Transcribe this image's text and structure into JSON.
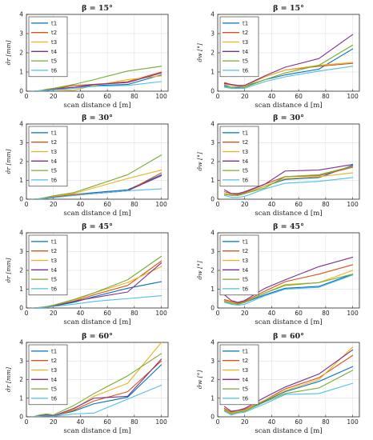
{
  "colors": {
    "t1": "#0072BD",
    "t2": "#D95319",
    "t3": "#EDB120",
    "t4": "#7E2F8E",
    "t5": "#77AC30",
    "t6": "#4DBEEE",
    "grid": "#e4e4e4",
    "axis": "#262626"
  },
  "chart_data": [
    {
      "type": "line",
      "title": "β = 15°",
      "xlabel": "scan distance d [m]",
      "ylabel": "σ̂r [mm]",
      "xlim": [
        0,
        105
      ],
      "ylim": [
        0,
        4
      ],
      "xticks": [
        "0",
        "20",
        "40",
        "60",
        "80",
        "100"
      ],
      "yticks": [
        "0",
        "1",
        "2",
        "3",
        "4"
      ],
      "grid": true,
      "legend": "top-left",
      "x": [
        5,
        10,
        15,
        20,
        35,
        50,
        75,
        100
      ],
      "series": [
        {
          "name": "t1",
          "values": [
            0,
            0.02,
            0.05,
            0.1,
            0.2,
            0.3,
            0.35,
            0.85
          ]
        },
        {
          "name": "t2",
          "values": [
            0,
            0.03,
            0.06,
            0.1,
            0.3,
            0.35,
            0.5,
            1.0
          ]
        },
        {
          "name": "t3",
          "values": [
            0,
            0.02,
            0.05,
            0.08,
            0.05,
            0.3,
            0.6,
            0.8
          ]
        },
        {
          "name": "t4",
          "values": [
            0,
            0.02,
            0.05,
            0.1,
            0.2,
            0.35,
            0.45,
            0.95
          ]
        },
        {
          "name": "t5",
          "values": [
            0,
            0.03,
            0.1,
            0.15,
            0.35,
            0.6,
            1.05,
            1.3
          ]
        },
        {
          "name": "t6",
          "values": [
            0,
            0.02,
            0.04,
            0.07,
            0.15,
            0.25,
            0.3,
            0.5
          ]
        }
      ]
    },
    {
      "type": "line",
      "title": "β = 15°",
      "xlabel": "scan distance d [m]",
      "ylabel": "σ̂w [°]",
      "xlim": [
        0,
        105
      ],
      "ylim": [
        0,
        4
      ],
      "xticks": [
        "0",
        "20",
        "40",
        "60",
        "80",
        "100"
      ],
      "yticks": [
        "0",
        "1",
        "2",
        "3",
        "4"
      ],
      "grid": true,
      "legend": "top-left",
      "x": [
        5,
        10,
        15,
        20,
        35,
        50,
        75,
        100
      ],
      "series": [
        {
          "name": "t1",
          "values": [
            0.3,
            0.2,
            0.2,
            0.25,
            0.6,
            0.85,
            1.15,
            2.2
          ]
        },
        {
          "name": "t2",
          "values": [
            0.45,
            0.35,
            0.3,
            0.3,
            0.75,
            1.1,
            1.3,
            1.45
          ]
        },
        {
          "name": "t3",
          "values": [
            0.35,
            0.3,
            0.25,
            0.25,
            0.75,
            1.1,
            1.35,
            1.5
          ]
        },
        {
          "name": "t4",
          "values": [
            0.4,
            0.35,
            0.3,
            0.3,
            0.8,
            1.25,
            1.7,
            2.95
          ]
        },
        {
          "name": "t5",
          "values": [
            0.25,
            0.2,
            0.15,
            0.2,
            0.6,
            0.95,
            1.35,
            2.4
          ]
        },
        {
          "name": "t6",
          "values": [
            0.2,
            0.15,
            0.15,
            0.15,
            0.5,
            0.75,
            1.05,
            1.3
          ]
        }
      ]
    },
    {
      "type": "line",
      "title": "β = 30°",
      "xlabel": "scan distance d [m]",
      "ylabel": "σ̂r [mm]",
      "xlim": [
        0,
        105
      ],
      "ylim": [
        0,
        4
      ],
      "xticks": [
        "0",
        "20",
        "40",
        "60",
        "80",
        "100"
      ],
      "yticks": [
        "0",
        "1",
        "2",
        "3",
        "4"
      ],
      "grid": true,
      "legend": "top-left",
      "x": [
        5,
        10,
        15,
        20,
        35,
        50,
        75,
        100
      ],
      "series": [
        {
          "name": "t1",
          "values": [
            0,
            0.02,
            0.05,
            0.1,
            0.25,
            0.35,
            0.5,
            1.3
          ]
        },
        {
          "name": "t2",
          "values": [
            0,
            0.03,
            0.08,
            0.12,
            0.25,
            0.3,
            0.45,
            1.4
          ]
        },
        {
          "name": "t3",
          "values": [
            0,
            0.03,
            0.1,
            0.15,
            0.3,
            0.6,
            1.1,
            1.55
          ]
        },
        {
          "name": "t4",
          "values": [
            0,
            0.02,
            0.06,
            0.1,
            0.2,
            0.3,
            0.45,
            1.25
          ]
        },
        {
          "name": "t5",
          "values": [
            0,
            0.03,
            0.1,
            0.18,
            0.35,
            0.7,
            1.3,
            2.35
          ]
        },
        {
          "name": "t6",
          "values": [
            0,
            0.02,
            0.05,
            0.08,
            0.2,
            0.3,
            0.45,
            0.55
          ]
        }
      ]
    },
    {
      "type": "line",
      "title": "β = 30°",
      "xlabel": "scan distance d [m]",
      "ylabel": "σ̂w [°]",
      "xlim": [
        0,
        105
      ],
      "ylim": [
        0,
        4
      ],
      "xticks": [
        "0",
        "20",
        "40",
        "60",
        "80",
        "100"
      ],
      "yticks": [
        "0",
        "1",
        "2",
        "3",
        "4"
      ],
      "grid": true,
      "legend": "top-left",
      "x": [
        5,
        10,
        15,
        20,
        35,
        50,
        75,
        100
      ],
      "series": [
        {
          "name": "t1",
          "values": [
            0.3,
            0.25,
            0.2,
            0.3,
            0.7,
            1.05,
            1.15,
            1.8
          ]
        },
        {
          "name": "t2",
          "values": [
            0.4,
            0.3,
            0.25,
            0.35,
            0.8,
            1.2,
            1.25,
            1.7
          ]
        },
        {
          "name": "t3",
          "values": [
            0.3,
            0.25,
            0.2,
            0.3,
            0.7,
            1.1,
            1.2,
            1.4
          ]
        },
        {
          "name": "t4",
          "values": [
            0.5,
            0.3,
            0.3,
            0.4,
            0.8,
            1.5,
            1.55,
            1.85
          ]
        },
        {
          "name": "t5",
          "values": [
            0.25,
            0.2,
            0.2,
            0.3,
            0.6,
            1.2,
            1.3,
            1.75
          ]
        },
        {
          "name": "t6",
          "values": [
            0.2,
            0.1,
            0.1,
            0.15,
            0.55,
            0.85,
            0.95,
            1.15
          ]
        }
      ]
    },
    {
      "type": "line",
      "title": "β = 45°",
      "xlabel": "scan distance d [m]",
      "ylabel": "σ̂r [mm]",
      "xlim": [
        0,
        105
      ],
      "ylim": [
        0,
        4
      ],
      "xticks": [
        "0",
        "20",
        "40",
        "60",
        "80",
        "100"
      ],
      "yticks": [
        "0",
        "1",
        "2",
        "3",
        "4"
      ],
      "grid": true,
      "legend": "top-left",
      "x": [
        5,
        10,
        15,
        20,
        35,
        50,
        75,
        100
      ],
      "series": [
        {
          "name": "t1",
          "values": [
            0,
            0.02,
            0.05,
            0.1,
            0.3,
            0.6,
            1.05,
            1.4
          ]
        },
        {
          "name": "t2",
          "values": [
            0,
            0.03,
            0.06,
            0.12,
            0.35,
            0.7,
            1.2,
            2.5
          ]
        },
        {
          "name": "t3",
          "values": [
            0,
            0.03,
            0.08,
            0.15,
            0.4,
            0.8,
            1.35,
            2.2
          ]
        },
        {
          "name": "t4",
          "values": [
            0,
            0.02,
            0.05,
            0.1,
            0.35,
            0.55,
            0.85,
            2.4
          ]
        },
        {
          "name": "t5",
          "values": [
            0,
            0.03,
            0.08,
            0.15,
            0.45,
            0.8,
            1.5,
            2.75
          ]
        },
        {
          "name": "t6",
          "values": [
            0,
            0.02,
            0.04,
            0.08,
            0.2,
            0.35,
            0.5,
            0.65
          ]
        }
      ]
    },
    {
      "type": "line",
      "title": "β = 45°",
      "xlabel": "scan distance d [m]",
      "ylabel": "σ̂w [°]",
      "xlim": [
        0,
        105
      ],
      "ylim": [
        0,
        4
      ],
      "xticks": [
        "0",
        "20",
        "40",
        "60",
        "80",
        "100"
      ],
      "yticks": [
        "0",
        "1",
        "2",
        "3",
        "4"
      ],
      "grid": true,
      "legend": "top-left",
      "x": [
        5,
        10,
        15,
        20,
        35,
        50,
        75,
        100
      ],
      "series": [
        {
          "name": "t1",
          "values": [
            0.4,
            0.3,
            0.2,
            0.3,
            0.7,
            1.05,
            1.15,
            1.8
          ]
        },
        {
          "name": "t2",
          "values": [
            0.45,
            0.35,
            0.25,
            0.35,
            0.9,
            1.4,
            1.8,
            2.3
          ]
        },
        {
          "name": "t3",
          "values": [
            0.4,
            0.3,
            0.2,
            0.3,
            0.8,
            1.25,
            1.35,
            2.0
          ]
        },
        {
          "name": "t4",
          "values": [
            0.7,
            0.4,
            0.3,
            0.4,
            1.05,
            1.5,
            2.2,
            2.7
          ]
        },
        {
          "name": "t5",
          "values": [
            0.35,
            0.25,
            0.2,
            0.3,
            0.8,
            1.2,
            1.35,
            1.8
          ]
        },
        {
          "name": "t6",
          "values": [
            0.3,
            0.2,
            0.15,
            0.2,
            0.65,
            1.0,
            1.1,
            1.75
          ]
        }
      ]
    },
    {
      "type": "line",
      "title": "β = 60°",
      "xlabel": "scan distance d [m]",
      "ylabel": "σ̂r [mm]",
      "xlim": [
        0,
        105
      ],
      "ylim": [
        0,
        4
      ],
      "xticks": [
        "0",
        "20",
        "40",
        "60",
        "80",
        "100"
      ],
      "yticks": [
        "0",
        "1",
        "2",
        "3",
        "4"
      ],
      "grid": true,
      "legend": "top-left",
      "x": [
        5,
        10,
        15,
        20,
        35,
        50,
        75,
        100
      ],
      "series": [
        {
          "name": "t1",
          "values": [
            0,
            0.05,
            0.1,
            0.05,
            0.3,
            0.7,
            1.05,
            2.8
          ]
        },
        {
          "name": "t2",
          "values": [
            0,
            0.1,
            0.15,
            0.05,
            0.35,
            0.85,
            1.35,
            3.0
          ]
        },
        {
          "name": "t3",
          "values": [
            0,
            0.05,
            0.1,
            0.05,
            0.4,
            1.1,
            1.8,
            4.0
          ]
        },
        {
          "name": "t4",
          "values": [
            0,
            0.05,
            0.1,
            0.05,
            0.45,
            1.0,
            1.1,
            3.1
          ]
        },
        {
          "name": "t5",
          "values": [
            0,
            0.1,
            0.15,
            0.1,
            0.6,
            1.25,
            2.2,
            3.4
          ]
        },
        {
          "name": "t6",
          "values": [
            0,
            0.03,
            0.05,
            0.03,
            0.15,
            0.2,
            0.95,
            1.7
          ]
        }
      ]
    },
    {
      "type": "line",
      "title": "β = 60°",
      "xlabel": "scan distance d [m]",
      "ylabel": "σ̂w [°]",
      "xlim": [
        0,
        105
      ],
      "ylim": [
        0,
        4
      ],
      "xticks": [
        "0",
        "20",
        "40",
        "60",
        "80",
        "100"
      ],
      "yticks": [
        "0",
        "1",
        "2",
        "3",
        "4"
      ],
      "grid": true,
      "legend": "top-left",
      "x": [
        5,
        10,
        15,
        20,
        35,
        50,
        75,
        100
      ],
      "series": [
        {
          "name": "t1",
          "values": [
            0.4,
            0.2,
            0.3,
            0.35,
            0.85,
            1.35,
            1.9,
            2.7
          ]
        },
        {
          "name": "t2",
          "values": [
            0.45,
            0.25,
            0.35,
            0.4,
            0.9,
            1.5,
            2.1,
            3.3
          ]
        },
        {
          "name": "t3",
          "values": [
            0.4,
            0.2,
            0.3,
            0.35,
            0.9,
            1.4,
            2.0,
            3.75
          ]
        },
        {
          "name": "t4",
          "values": [
            0.55,
            0.3,
            0.35,
            0.45,
            1.05,
            1.6,
            2.3,
            3.6
          ]
        },
        {
          "name": "t5",
          "values": [
            0.35,
            0.15,
            0.25,
            0.3,
            0.8,
            1.25,
            1.55,
            2.5
          ]
        },
        {
          "name": "t6",
          "values": [
            0.3,
            0.1,
            0.2,
            0.25,
            0.7,
            1.2,
            1.25,
            1.8
          ]
        }
      ]
    }
  ]
}
